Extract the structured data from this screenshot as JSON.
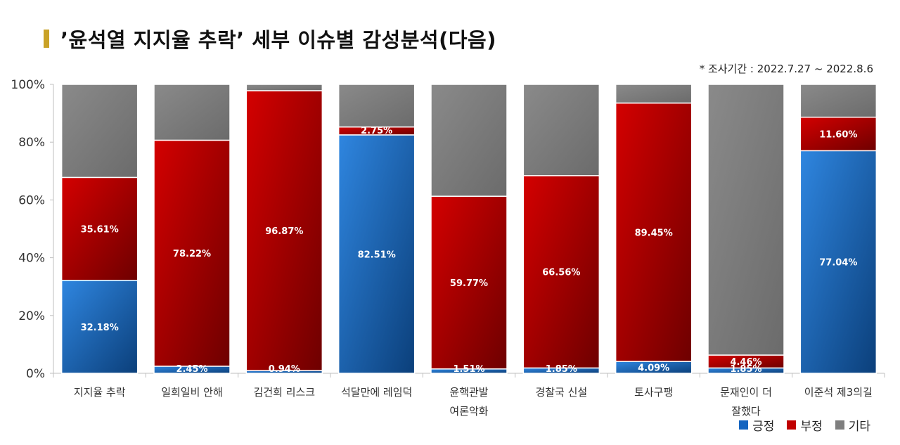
{
  "header": {
    "title": "’윤석열 지지율 추락’ 세부 이슈별 감성분석(다음)",
    "period": "* 조사기간 : 2022.7.27 ~ 2022.8.6"
  },
  "colors": {
    "positive": "#1565c0",
    "negative": "#c00000",
    "other": "#7f7f7f",
    "title_accent": "#c9a227"
  },
  "chart_data": {
    "type": "bar",
    "stacked": true,
    "ylim": [
      0,
      100
    ],
    "yticks": [
      "0%",
      "20%",
      "40%",
      "60%",
      "80%",
      "100%"
    ],
    "categories": [
      [
        "지지율 추락"
      ],
      [
        "일희일비 안해"
      ],
      [
        "김건희 리스크"
      ],
      [
        "석달만에 레임덕"
      ],
      [
        "윤핵관발",
        "여론악화"
      ],
      [
        "경찰국 신설"
      ],
      [
        "토사구팽"
      ],
      [
        "문재인이 더",
        "잘했다"
      ],
      [
        "이준석 제3의길"
      ]
    ],
    "series": [
      {
        "name": "긍정",
        "values": [
          32.18,
          2.45,
          0.94,
          82.51,
          1.51,
          1.85,
          4.09,
          1.85,
          77.04
        ],
        "labels": [
          "32.18%",
          "2.45%",
          "0.94%",
          "82.51%",
          "1.51%",
          "1.85%",
          "4.09%",
          "1.85%",
          "77.04%"
        ]
      },
      {
        "name": "부정",
        "values": [
          35.61,
          78.22,
          96.87,
          2.75,
          59.77,
          66.56,
          89.45,
          4.46,
          11.6
        ],
        "labels": [
          "35.61%",
          "78.22%",
          "96.87%",
          "2.75%",
          "59.77%",
          "66.56%",
          "89.45%",
          "4.46%",
          "11.60%"
        ]
      },
      {
        "name": "기타",
        "values": [
          32.21,
          19.33,
          2.19,
          14.74,
          38.72,
          31.59,
          6.46,
          93.69,
          11.36
        ],
        "labels": []
      }
    ],
    "legend": [
      "긍정",
      "부정",
      "기타"
    ],
    "legend_position": "bottom-right",
    "grid": false
  }
}
